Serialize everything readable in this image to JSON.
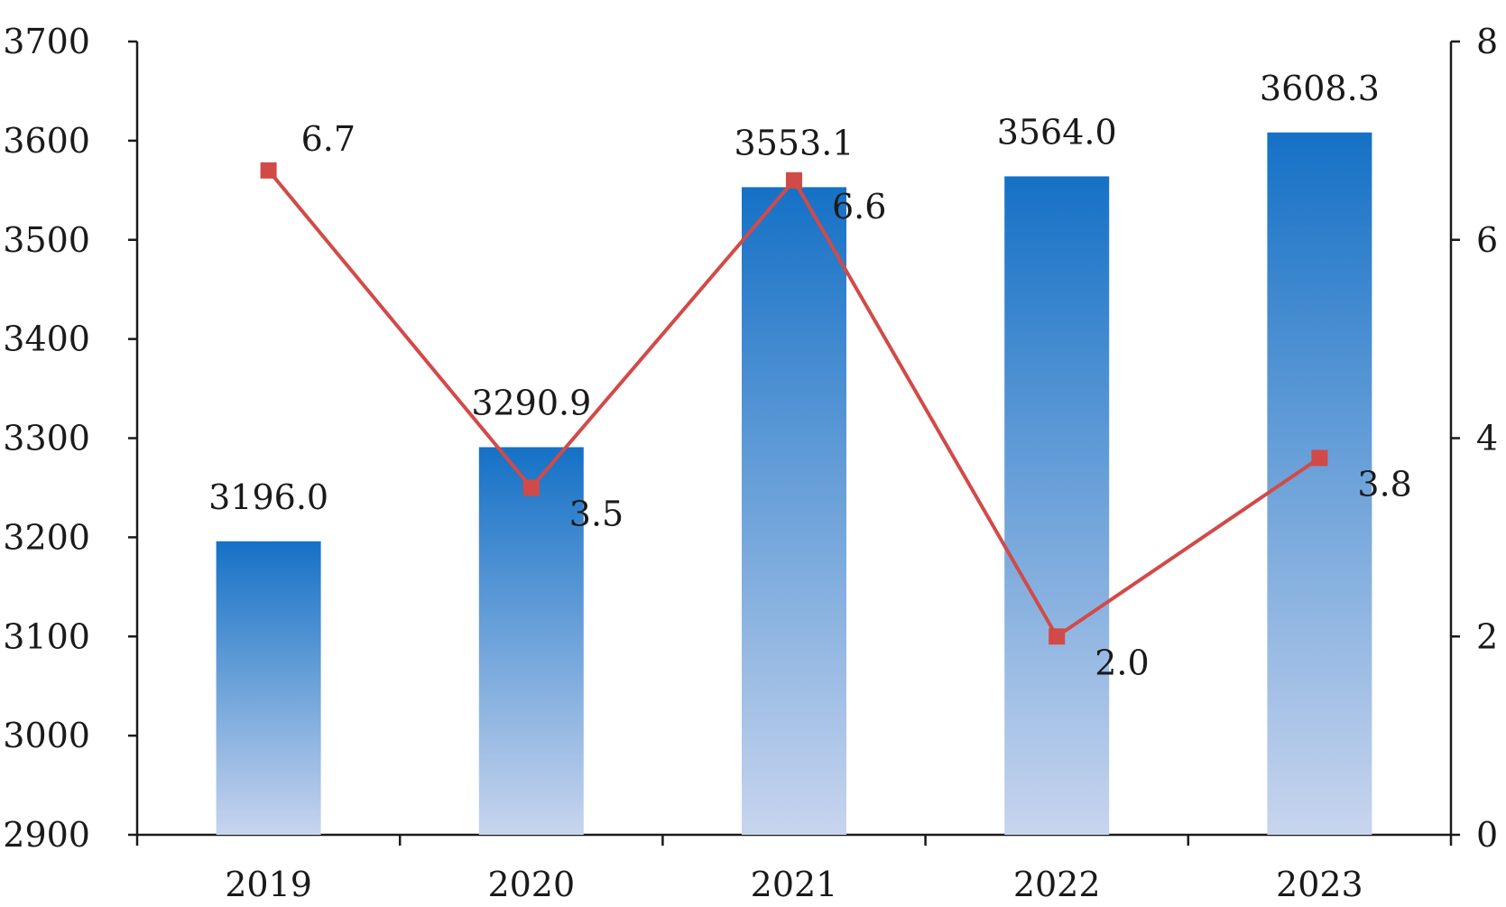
{
  "chart_data": {
    "type": "bar",
    "categories": [
      "2019",
      "2020",
      "2021",
      "2022",
      "2023"
    ],
    "series": [
      {
        "type": "bar",
        "axis": "left",
        "values": [
          3196.0,
          3290.9,
          3553.1,
          3564.0,
          3608.3
        ],
        "labels": [
          "3196.0",
          "3290.9",
          "3553.1",
          "3564.0",
          "3608.3"
        ],
        "color_top": "#1571c6",
        "color_bottom": "#c8d5ee"
      },
      {
        "type": "line",
        "axis": "right",
        "values": [
          6.7,
          3.5,
          6.6,
          2.0,
          3.8
        ],
        "labels": [
          "6.7",
          "3.5",
          "6.6",
          "2.0",
          "3.8"
        ],
        "color": "#d24a48"
      }
    ],
    "y_left": {
      "min": 2900,
      "max": 3700,
      "ticks": [
        "2900",
        "3000",
        "3100",
        "3200",
        "3300",
        "3400",
        "3500",
        "3600",
        "3700"
      ]
    },
    "y_right": {
      "min": 0,
      "max": 8,
      "ticks": [
        "0",
        "2",
        "4",
        "6",
        "8"
      ]
    },
    "grid": false,
    "legend": "none"
  }
}
